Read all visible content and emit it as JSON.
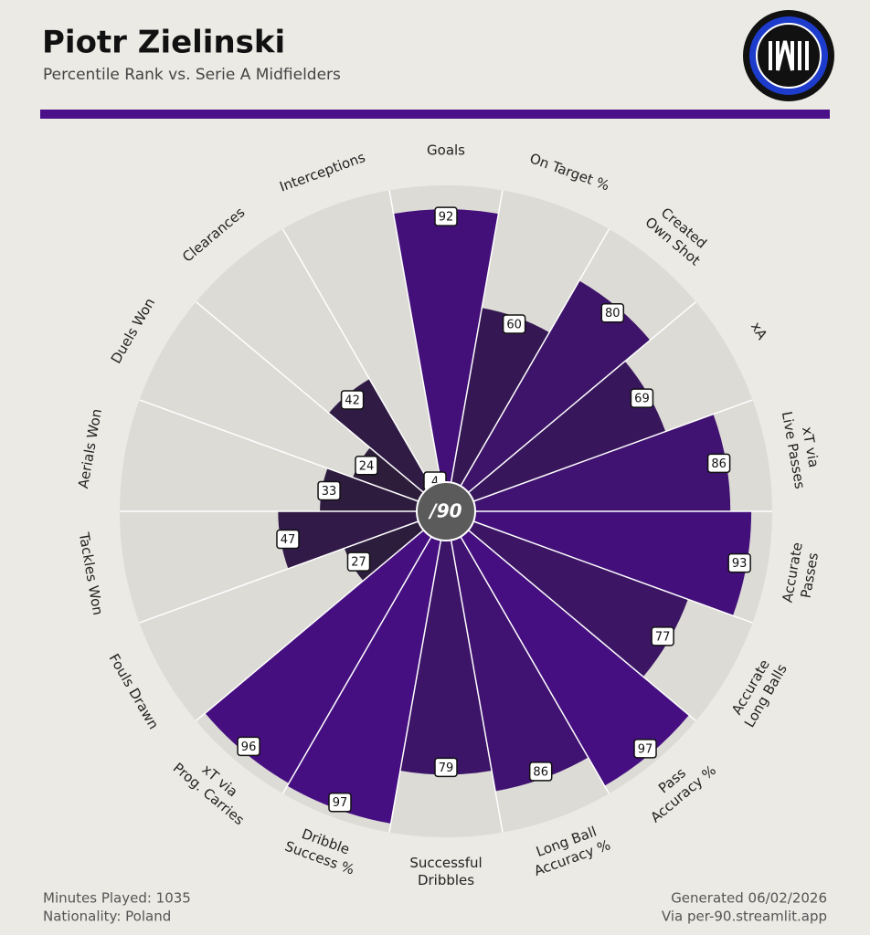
{
  "chart_data": {
    "type": "pizza",
    "title": "Piotr Zielinski",
    "subtitle": "Percentile Rank vs. Serie A Midfielders",
    "categories": [
      [
        "Goals"
      ],
      [
        "On Target %"
      ],
      [
        "Created",
        "Own Shot"
      ],
      [
        "xA"
      ],
      [
        "xT via",
        "Live Passes"
      ],
      [
        "Accurate",
        "Passes"
      ],
      [
        "Accurate",
        "Long Balls"
      ],
      [
        "Pass",
        "Accuracy %"
      ],
      [
        "Long Ball",
        "Accuracy %"
      ],
      [
        "Successful",
        "Dribbles"
      ],
      [
        "Dribble",
        "Success %"
      ],
      [
        "xT via",
        "Prog. Carries"
      ],
      [
        "Fouls Drawn"
      ],
      [
        "Tackles Won"
      ],
      [
        "Aerials Won"
      ],
      [
        "Duels Won"
      ],
      [
        "Clearances"
      ],
      [
        "Interceptions"
      ]
    ],
    "values": [
      92,
      60,
      80,
      69,
      86,
      93,
      77,
      97,
      86,
      79,
      97,
      96,
      27,
      47,
      33,
      24,
      42,
      4
    ],
    "rlim": [
      0,
      100
    ],
    "colors": [
      "#2b1e36",
      "#470e86"
    ],
    "center_logo": "/90",
    "footer_left": [
      "Minutes Played: 1035",
      "Nationality: Poland"
    ],
    "footer_right": [
      "Generated 06/02/2026",
      "Via per-90.streamlit.app"
    ]
  }
}
